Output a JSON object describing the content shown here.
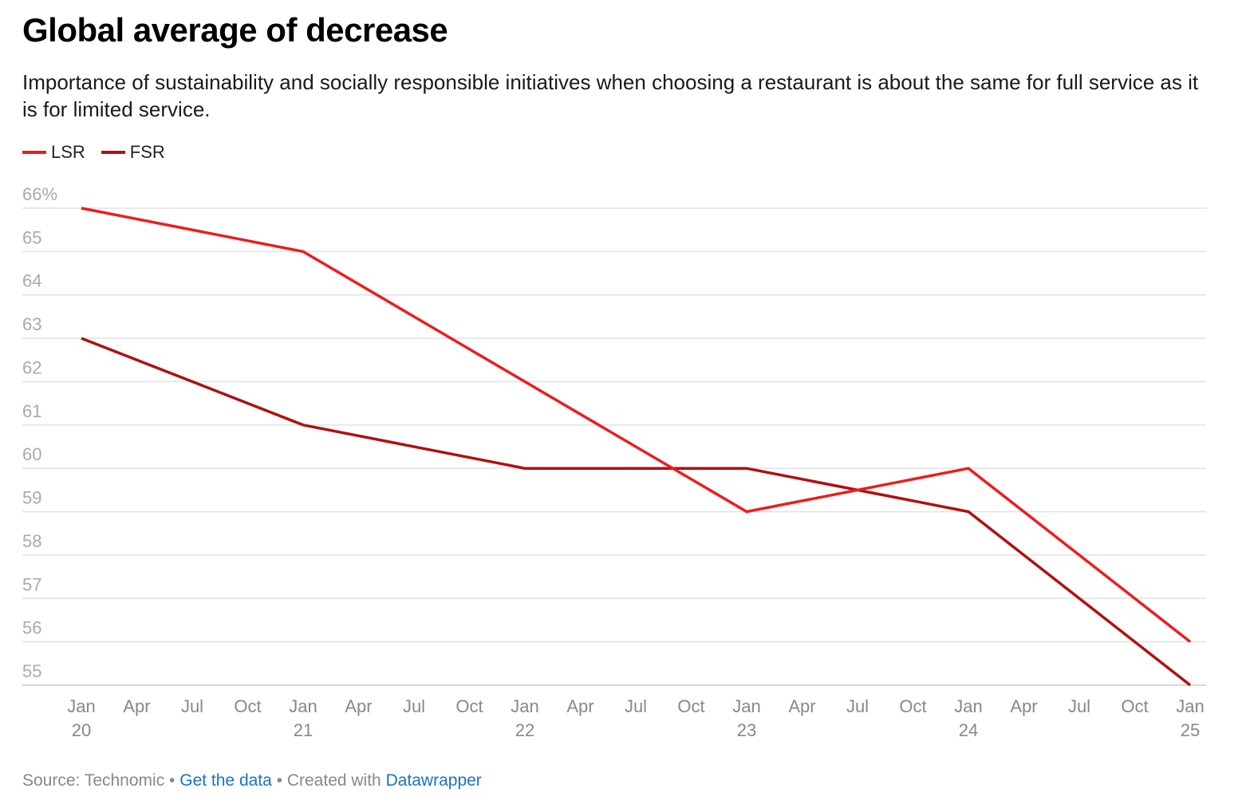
{
  "header": {
    "title": "Global average of decrease",
    "subtitle": "Importance of sustainability and socially responsible initiatives when choosing a restaurant is about the same for full service as it is for limited service."
  },
  "colors": {
    "LSR": "#ee1c1c",
    "FSR": "#b01010",
    "grid": "#e2e2e2"
  },
  "footer": {
    "source_label": "Source: Technomic",
    "sep1": " • ",
    "get_data": "Get the data",
    "sep2": " • Created with ",
    "datawrapper": "Datawrapper"
  },
  "chart_data": {
    "type": "line",
    "title": "Global average of decrease",
    "xlabel": "",
    "ylabel": "",
    "ylim": [
      55,
      66
    ],
    "y_ticks": [
      "66%",
      "65",
      "64",
      "63",
      "62",
      "61",
      "60",
      "59",
      "58",
      "57",
      "56",
      "55"
    ],
    "x_ticks": [
      {
        "line1": "Jan",
        "line2": "20"
      },
      {
        "line1": "Apr",
        "line2": ""
      },
      {
        "line1": "Jul",
        "line2": ""
      },
      {
        "line1": "Oct",
        "line2": ""
      },
      {
        "line1": "Jan",
        "line2": "21"
      },
      {
        "line1": "Apr",
        "line2": ""
      },
      {
        "line1": "Jul",
        "line2": ""
      },
      {
        "line1": "Oct",
        "line2": ""
      },
      {
        "line1": "Jan",
        "line2": "22"
      },
      {
        "line1": "Apr",
        "line2": ""
      },
      {
        "line1": "Jul",
        "line2": ""
      },
      {
        "line1": "Oct",
        "line2": ""
      },
      {
        "line1": "Jan",
        "line2": "23"
      },
      {
        "line1": "Apr",
        "line2": ""
      },
      {
        "line1": "Jul",
        "line2": ""
      },
      {
        "line1": "Oct",
        "line2": ""
      },
      {
        "line1": "Jan",
        "line2": "24"
      },
      {
        "line1": "Apr",
        "line2": ""
      },
      {
        "line1": "Jul",
        "line2": ""
      },
      {
        "line1": "Oct",
        "line2": ""
      },
      {
        "line1": "Jan",
        "line2": "25"
      }
    ],
    "x": [
      "Jan 2020",
      "Jan 2021",
      "Jan 2022",
      "Jan 2023",
      "Jan 2024",
      "Jan 2025"
    ],
    "x_years": [
      2020,
      2021,
      2022,
      2023,
      2024,
      2025
    ],
    "series": [
      {
        "name": "LSR",
        "values": [
          66,
          65,
          62,
          59,
          60,
          56
        ]
      },
      {
        "name": "FSR",
        "values": [
          63,
          61,
          60,
          60,
          59,
          55
        ]
      }
    ]
  }
}
